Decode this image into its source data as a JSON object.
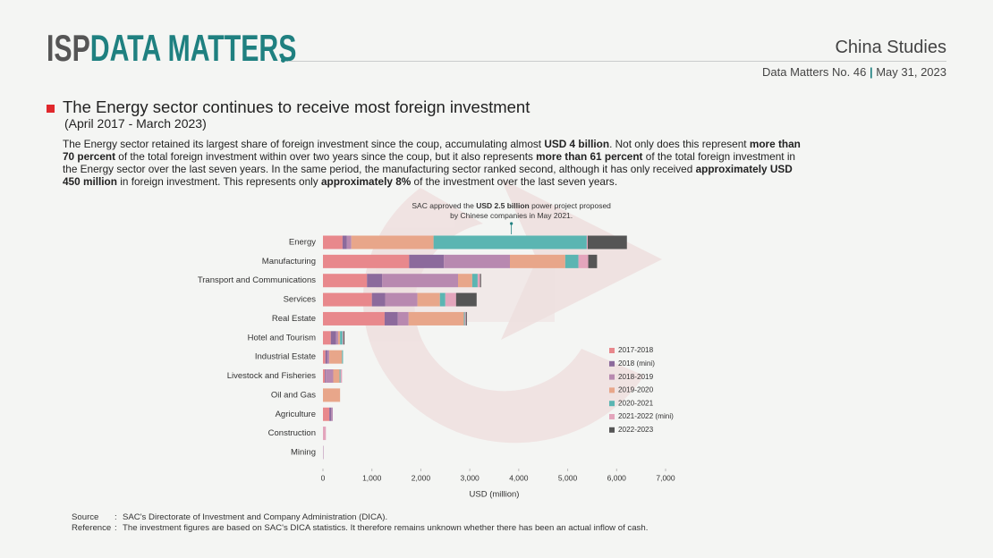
{
  "header": {
    "brand_prefix": "ISP",
    "brand": "DATA MATTERS",
    "section": "China Studies",
    "issue": "Data Matters No. 46",
    "separator": "|",
    "date": "May 31, 2023"
  },
  "heading": {
    "title": "The Energy sector continues to receive most foreign investment",
    "period": "(April 2017 - March 2023)"
  },
  "body": [
    {
      "text": "The Energy sector retained its largest share of foreign investment since the coup, accumulating almost ",
      "bold": false
    },
    {
      "text": "USD 4 billion",
      "bold": true
    },
    {
      "text": ". Not only does this represent ",
      "bold": false
    },
    {
      "text": "more than 70 percent",
      "bold": true
    },
    {
      "text": " of the total foreign investment within over two years since the coup, but it also represents ",
      "bold": false
    },
    {
      "text": "more than 61 percent",
      "bold": true
    },
    {
      "text": " of the total foreign investment in the Energy sector over the last seven years. In the same period, the manufacturing sector ranked second, although it has only received ",
      "bold": false
    },
    {
      "text": "approximately USD 450 million",
      "bold": true
    },
    {
      "text": " in foreign investment. This represents only ",
      "bold": false
    },
    {
      "text": "approximately 8%",
      "bold": true
    },
    {
      "text": " of the investment over the last seven years.",
      "bold": false
    }
  ],
  "chart_data": {
    "type": "bar",
    "orientation": "horizontal",
    "stacked": true,
    "categories": [
      "Energy",
      "Manufacturing",
      "Transport and Communications",
      "Services",
      "Real Estate",
      "Hotel and Tourism",
      "Industrial Estate",
      "Livestock and Fisheries",
      "Oil and Gas",
      "Agriculture",
      "Construction",
      "Mining"
    ],
    "series": [
      {
        "name": "2017-2018",
        "color": "#e8888c",
        "values": [
          400,
          1760,
          900,
          1000,
          1260,
          160,
          50,
          40,
          0,
          130,
          0,
          0
        ]
      },
      {
        "name": "2018 (mini)",
        "color": "#8c6a9c",
        "values": [
          90,
          710,
          310,
          270,
          270,
          110,
          40,
          20,
          0,
          40,
          0,
          0
        ]
      },
      {
        "name": "2018-2019",
        "color": "#b889b0",
        "values": [
          90,
          1350,
          1550,
          660,
          220,
          40,
          40,
          150,
          0,
          30,
          0,
          10
        ]
      },
      {
        "name": "2019-2020",
        "color": "#e8a68a",
        "values": [
          1680,
          1130,
          290,
          460,
          1130,
          40,
          260,
          130,
          350,
          0,
          0,
          0
        ]
      },
      {
        "name": "2020-2021",
        "color": "#5bb5b2",
        "values": [
          3130,
          270,
          110,
          110,
          20,
          50,
          20,
          20,
          0,
          0,
          0,
          0
        ]
      },
      {
        "name": "2021-2022 (mini)",
        "color": "#e3a5bc",
        "values": [
          20,
          200,
          50,
          220,
          20,
          20,
          0,
          30,
          0,
          0,
          60,
          0
        ]
      },
      {
        "name": "2022-2023",
        "color": "#555555",
        "values": [
          800,
          180,
          20,
          420,
          20,
          20,
          0,
          0,
          0,
          0,
          0,
          0
        ]
      }
    ],
    "xlim": [
      0,
      7000
    ],
    "xticks": [
      0,
      {
        "value": 1000,
        "label": "1,000"
      },
      {
        "value": 2000,
        "label": "2,000"
      },
      {
        "value": 3000,
        "label": "3,000"
      },
      {
        "value": 4000,
        "label": "4,000"
      },
      {
        "value": 5000,
        "label": "5,000"
      },
      {
        "value": 6000,
        "label": "6,000"
      },
      {
        "value": 7000,
        "label": "7,000"
      }
    ],
    "xlabel": "USD (million)",
    "grid": false,
    "legend": "right",
    "annotation": {
      "x": 3850,
      "lines": [
        [
          {
            "text": "SAC approved the ",
            "bold": false
          },
          {
            "text": "USD 2.5 billion",
            "bold": true
          },
          {
            "text": " power project proposed",
            "bold": false
          }
        ],
        [
          {
            "text": "by Chinese companies in May 2021.",
            "bold": false
          }
        ]
      ]
    }
  },
  "footer": {
    "source_label": "Source",
    "source_sep": ":",
    "source": "SAC's Directorate of Investment and Company Administration (DICA).",
    "reference_label": "Reference",
    "reference_sep": ":",
    "reference": "The investment figures are based on SAC's DICA statistics. It therefore remains unknown whether there has been an actual inflow of cash."
  }
}
